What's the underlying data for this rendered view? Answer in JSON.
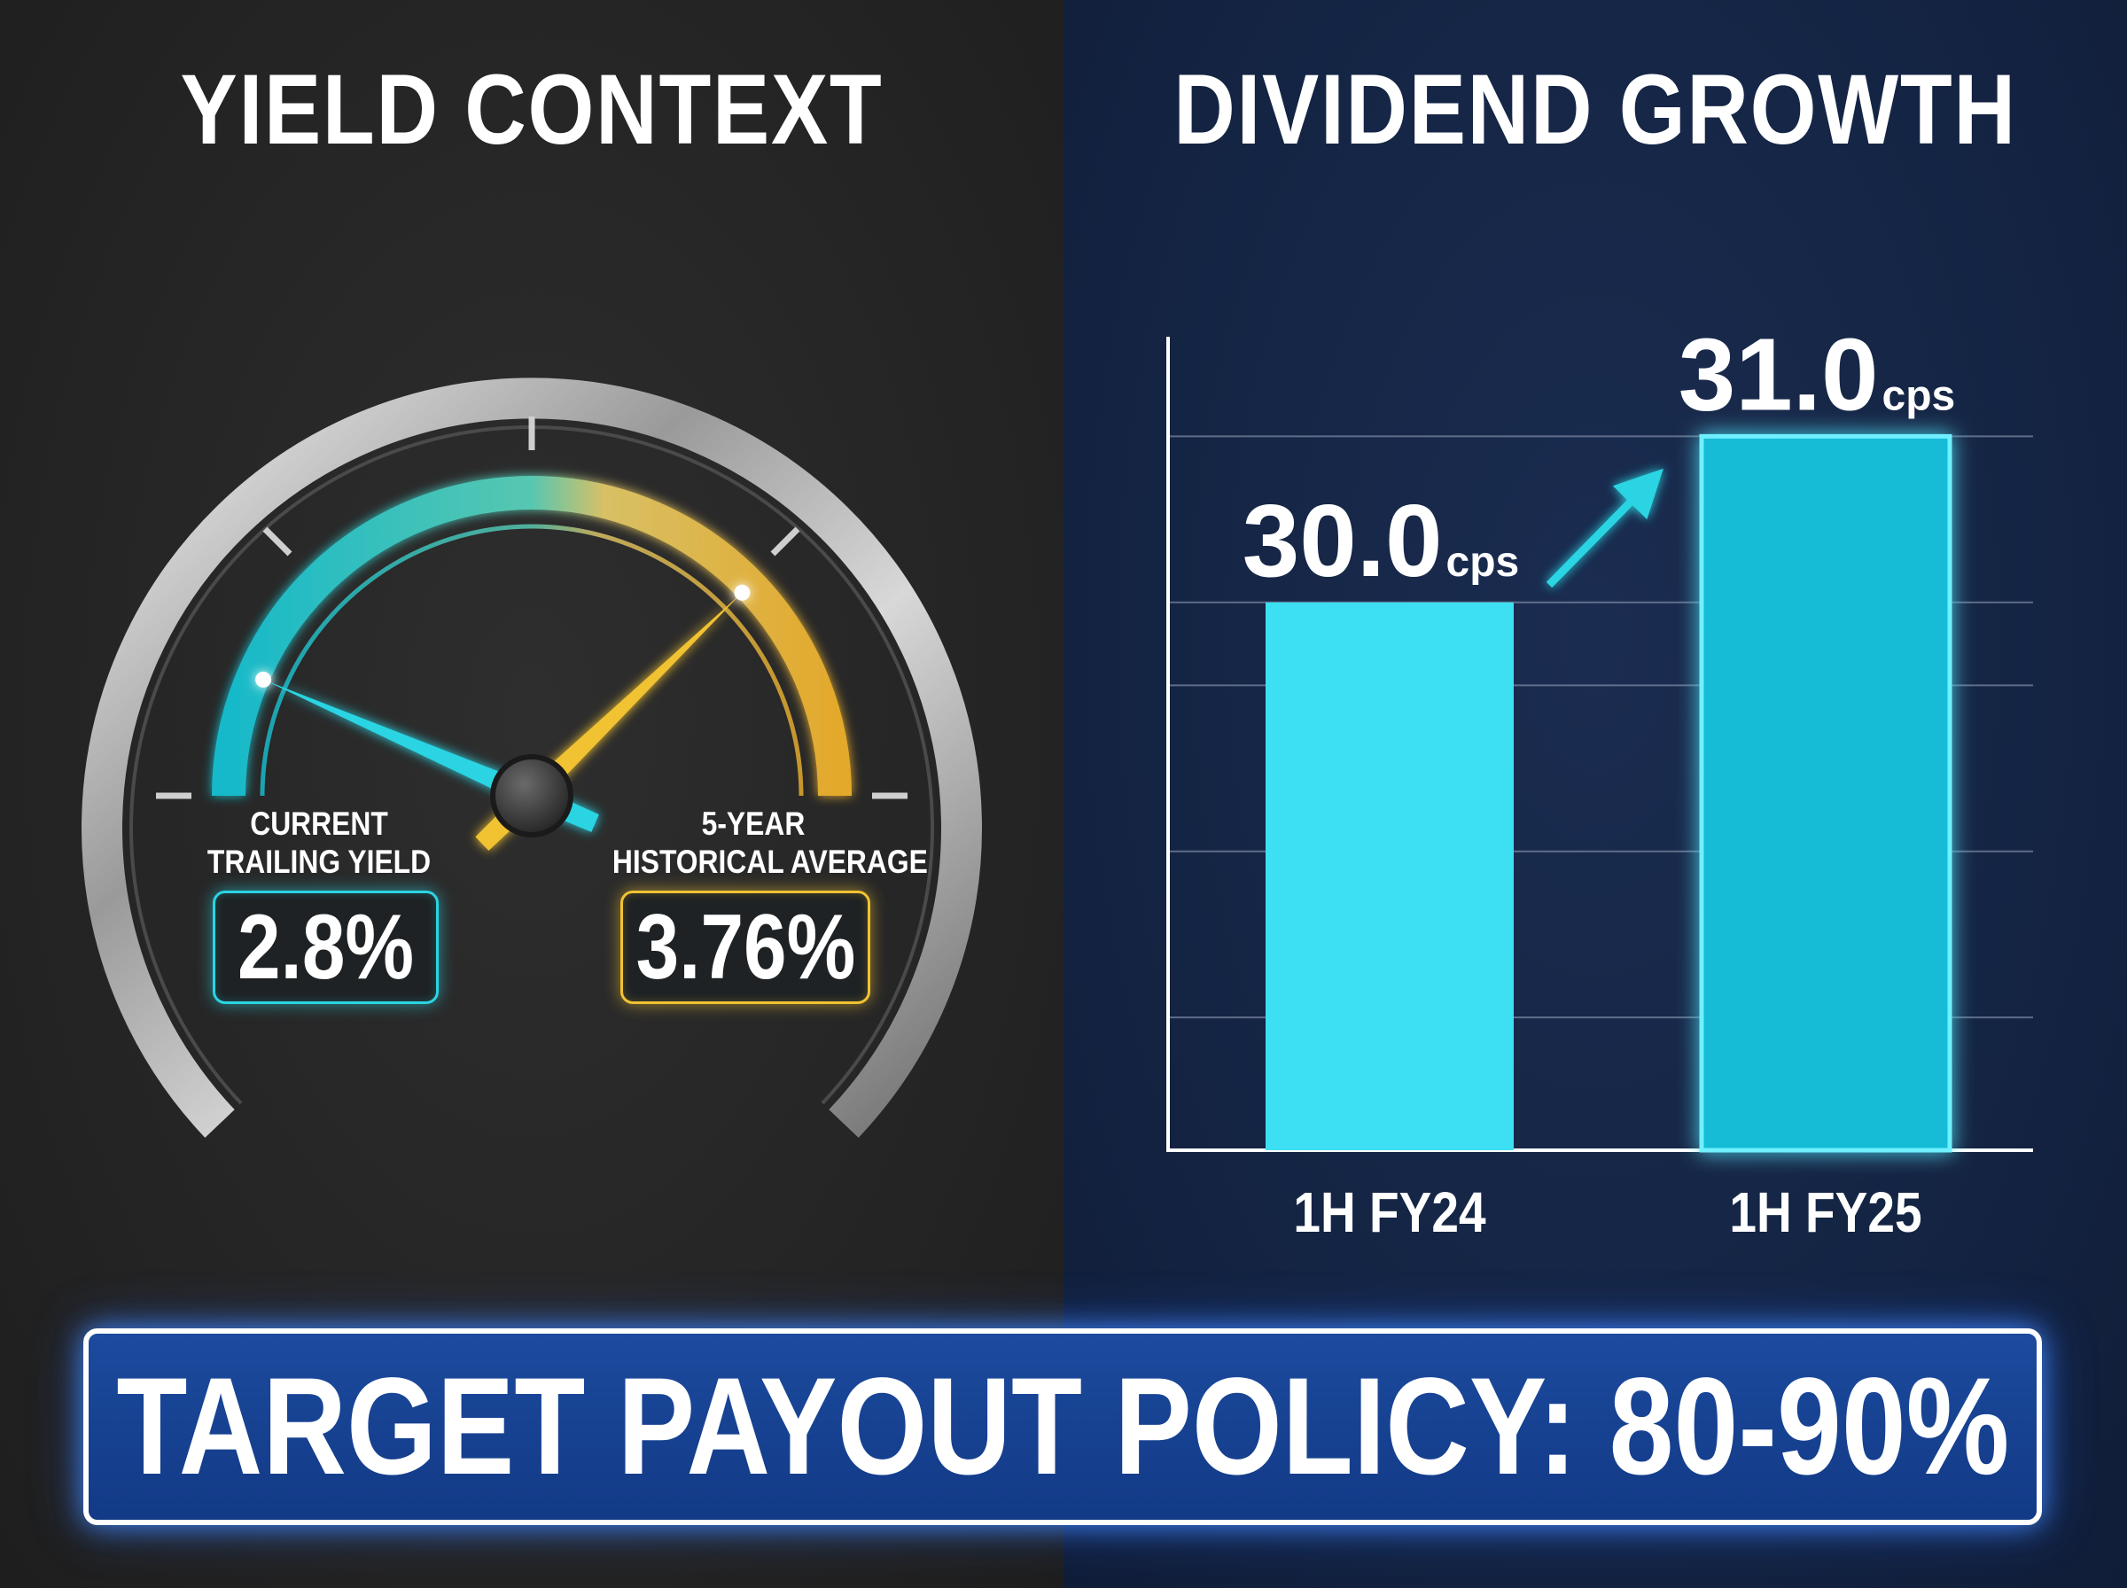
{
  "colors": {
    "left_bg": "#262626",
    "right_bg": "#142443",
    "teal": "#2ad4e2",
    "gold": "#f1c232",
    "bar_fy24": "#3de0f2",
    "bar_fy25": "#12bcd6",
    "banner": "#164294"
  },
  "chart_data": [
    {
      "type": "gauge",
      "title": "YIELD CONTEXT",
      "needles": [
        {
          "label_line1": "CURRENT",
          "label_line2": "TRAILING YIELD",
          "value": 2.8,
          "display": "2.8%",
          "color": "#2ad4e2"
        },
        {
          "label_line1": "5-YEAR",
          "label_line2": "HISTORICAL AVERAGE",
          "value": 3.76,
          "display": "3.76%",
          "color": "#f1c232"
        }
      ]
    },
    {
      "type": "bar",
      "title": "DIVIDEND GROWTH",
      "categories": [
        "1H FY24",
        "1H FY25"
      ],
      "values": [
        30.0,
        31.0
      ],
      "value_labels": [
        "30.0",
        "31.0"
      ],
      "unit": "cps",
      "ylim": [
        26.7,
        31.6
      ],
      "grid": true,
      "trend_arrow": true
    }
  ],
  "banner": {
    "text": "TARGET PAYOUT POLICY: 80-90%"
  }
}
